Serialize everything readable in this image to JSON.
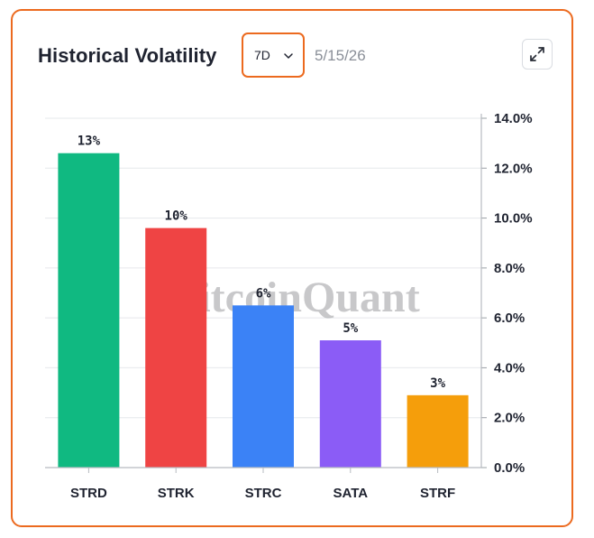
{
  "header": {
    "title": "Historical Volatility",
    "period": "7D",
    "date": "5/15/26"
  },
  "icons": {
    "dropdown": "chevron-down-icon",
    "expand": "expand-icon"
  },
  "watermark": "BitcoinQuant",
  "chart_data": {
    "type": "bar",
    "categories": [
      "STRD",
      "STRK",
      "STRC",
      "SATA",
      "STRF"
    ],
    "values": [
      12.6,
      9.6,
      6.5,
      5.1,
      2.9
    ],
    "data_labels": [
      "13%",
      "10%",
      "6%",
      "5%",
      "3%"
    ],
    "colors": [
      "#10b981",
      "#ef4444",
      "#3b82f6",
      "#8b5cf6",
      "#f59e0b"
    ],
    "yticks": [
      "0.0%",
      "2.0%",
      "4.0%",
      "6.0%",
      "8.0%",
      "10.0%",
      "12.0%",
      "14.0%"
    ],
    "ylim": [
      0,
      14
    ],
    "y_axis_side": "right",
    "grid": true,
    "legend": "none"
  }
}
